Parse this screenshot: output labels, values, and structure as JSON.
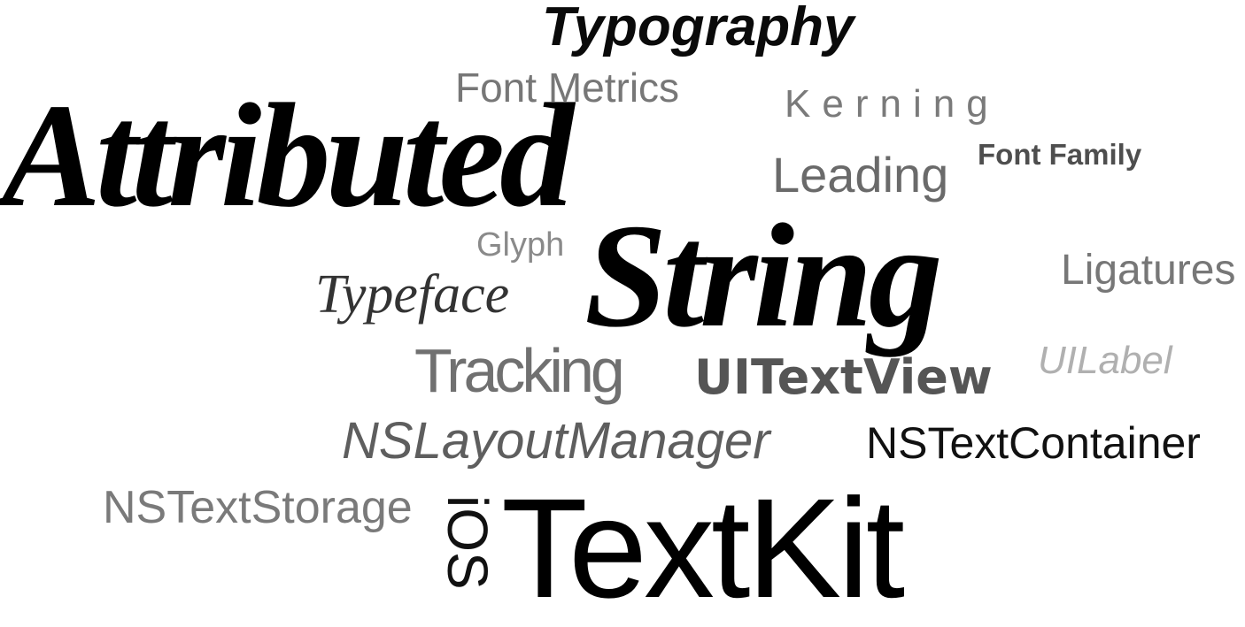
{
  "word_cloud": {
    "words": {
      "typography": "Typography",
      "font_metrics": "Font Metrics",
      "kerning": "Kerning",
      "attributed": "Attributed",
      "font_family": "Font Family",
      "leading": "Leading",
      "glyph": "Glyph",
      "string": "String",
      "ligatures": "Ligatures",
      "typeface": "Typeface",
      "tracking": "Tracking",
      "uitextview": "UITextView",
      "uilabel": "UILabel",
      "nslayoutmanager": "NSLayoutManager",
      "nstextcontainer": "NSTextContainer",
      "nstextstorage": "NSTextStorage",
      "ios": "iOS",
      "textkit": "TextKit"
    }
  }
}
